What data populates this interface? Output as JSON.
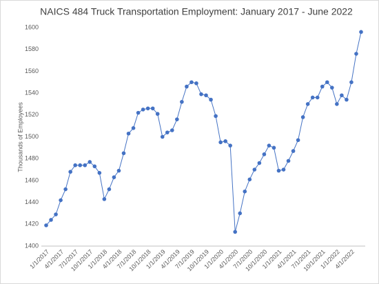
{
  "chart_data": {
    "type": "line",
    "title": "NAICS 484 Truck Transportation Employment: January 2017 - June 2022",
    "y_label": "Thousands of Employees",
    "categories": [
      "1/1/2017",
      null,
      null,
      "4/1/2017",
      null,
      null,
      "7/1/2017",
      null,
      null,
      "10/1/2017",
      null,
      null,
      "1/1/2018",
      null,
      null,
      "4/1/2018",
      null,
      null,
      "7/1/2018",
      null,
      null,
      "10/1/2018",
      null,
      null,
      "1/1/2019",
      null,
      null,
      "4/1/2019",
      null,
      null,
      "7/1/2019",
      null,
      null,
      "10/1/2019",
      null,
      null,
      "1/1/2020",
      null,
      null,
      "4/1/2020",
      null,
      null,
      "7/1/2020",
      null,
      null,
      "10/1/2020",
      null,
      null,
      "1/1/2021",
      null,
      null,
      "4/1/2021",
      null,
      null,
      "7/1/2021",
      null,
      null,
      "10/1/2021",
      null,
      null,
      "1/1/2022",
      null,
      null,
      "4/1/2022",
      null,
      null
    ],
    "values": [
      1419,
      1424,
      1429,
      1442,
      1452,
      1468,
      1474,
      1474,
      1474,
      1477,
      1473,
      1467,
      1443,
      1452,
      1463,
      1469,
      1485,
      1503,
      1508,
      1522,
      1525,
      1526,
      1526,
      1521,
      1500,
      1504,
      1506,
      1516,
      1532,
      1546,
      1550,
      1549,
      1539,
      1538,
      1534,
      1519,
      1495,
      1496,
      1492,
      1413,
      1430,
      1450,
      1461,
      1470,
      1476,
      1484,
      1492,
      1490,
      1469,
      1470,
      1478,
      1487,
      1497,
      1518,
      1530,
      1536,
      1536,
      1546,
      1550,
      1545,
      1530,
      1538,
      1534,
      1550,
      1576,
      1596
    ],
    "color": "#4472c4",
    "ylim": [
      1400,
      1600
    ],
    "yticks": [
      1400,
      1420,
      1440,
      1460,
      1480,
      1500,
      1520,
      1540,
      1560,
      1580,
      1600
    ],
    "grid": false
  }
}
